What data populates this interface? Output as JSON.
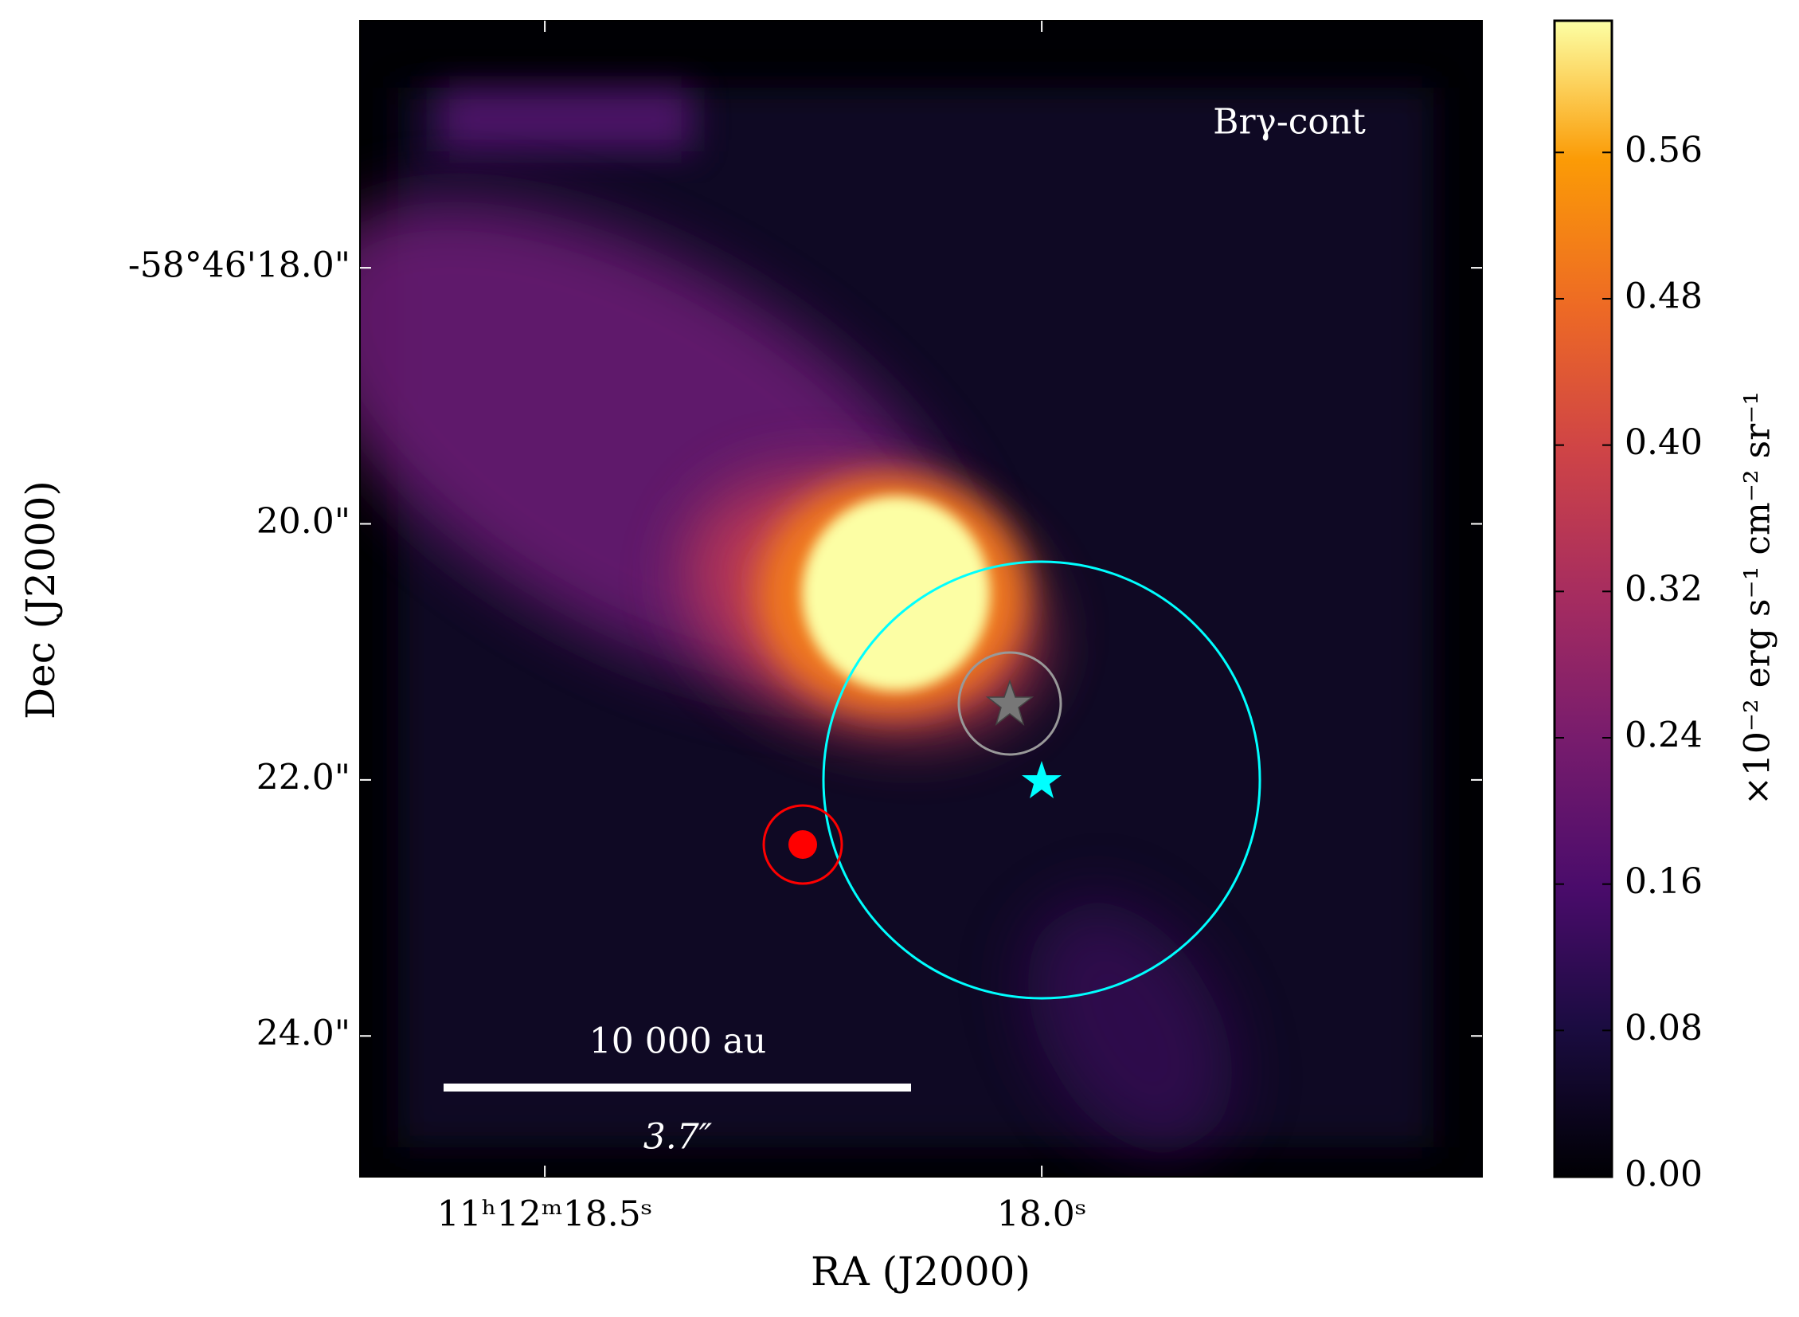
{
  "chart_data": {
    "type": "image",
    "annotation": "Brγ-cont",
    "xlabel": "RA (J2000)",
    "ylabel": "Dec (J2000)",
    "xlim": [
      18.686,
      17.557
    ],
    "ylim": [
      25.1,
      16.07
    ],
    "xticks": [
      {
        "value": 18.5,
        "label": "11ʰ12ᵐ18.5ˢ"
      },
      {
        "value": 18.0,
        "label": "18.0ˢ"
      }
    ],
    "yticks": [
      {
        "value": 18,
        "label": "-58°46'18.0\""
      },
      {
        "value": 20,
        "label": "20.0\""
      },
      {
        "value": 22,
        "label": "22.0\""
      },
      {
        "value": 24,
        "label": "24.0\""
      }
    ],
    "colorbar": {
      "label": "×10⁻² erg s⁻¹ cm⁻² sr⁻¹",
      "lim": [
        0,
        0.632
      ],
      "ticks": [
        {
          "value": 0,
          "label": "0.00"
        },
        {
          "value": 0.08,
          "label": "0.08"
        },
        {
          "value": 0.16,
          "label": "0.16"
        },
        {
          "value": 0.24,
          "label": "0.24"
        },
        {
          "value": 0.32,
          "label": "0.32"
        },
        {
          "value": 0.4,
          "label": "0.40"
        },
        {
          "value": 0.48,
          "label": "0.48"
        },
        {
          "value": 0.56,
          "label": "0.56"
        }
      ]
    },
    "scalebar": {
      "length_label": "10 000 au",
      "angle_label": "3.7″"
    }
  }
}
